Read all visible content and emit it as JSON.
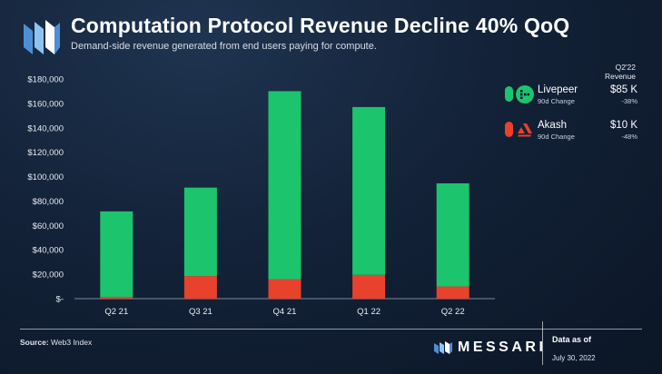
{
  "header": {
    "title": "Computation Protocol Revenue Decline 40% QoQ",
    "subtitle": "Demand-side revenue generated from end users paying for compute."
  },
  "chart_data": {
    "type": "bar",
    "stacked": true,
    "categories": [
      "Q2 21",
      "Q3 21",
      "Q4 21",
      "Q1 22",
      "Q2 22"
    ],
    "series": [
      {
        "name": "Akash",
        "color": "#e8412c",
        "values": [
          1500,
          18500,
          16000,
          19500,
          10000
        ]
      },
      {
        "name": "Livepeer",
        "color": "#1cc46e",
        "values": [
          70000,
          72500,
          154000,
          137500,
          84500
        ]
      }
    ],
    "y_ticks": [
      "$-",
      "$20,000",
      "$40,000",
      "$60,000",
      "$80,000",
      "$100,000",
      "$120,000",
      "$140,000",
      "$160,000",
      "$180,000"
    ],
    "ylim": [
      0,
      180000
    ],
    "title": "Computation Protocol Revenue Decline 40% QoQ",
    "xlabel": "",
    "ylabel": ""
  },
  "legend": {
    "header_line1": "Q2'22",
    "header_line2": "Revenue",
    "items": [
      {
        "name": "Livepeer",
        "change_label": "90d Change",
        "value": "$85 K",
        "pct": "-38%",
        "color": "#1cc46e",
        "icon": "livepeer-icon"
      },
      {
        "name": "Akash",
        "change_label": "90d Change",
        "value": "$10 K",
        "pct": "-48%",
        "color": "#e8412c",
        "icon": "akash-icon"
      }
    ]
  },
  "footer": {
    "source_label": "Source:",
    "source_value": "Web3 Index",
    "brand": "MESSARI",
    "data_as_of_label": "Data as of",
    "data_as_of_date": "July 30, 2022"
  },
  "colors": {
    "livepeer": "#1cc46e",
    "akash": "#e8412c",
    "background": "#132238"
  }
}
